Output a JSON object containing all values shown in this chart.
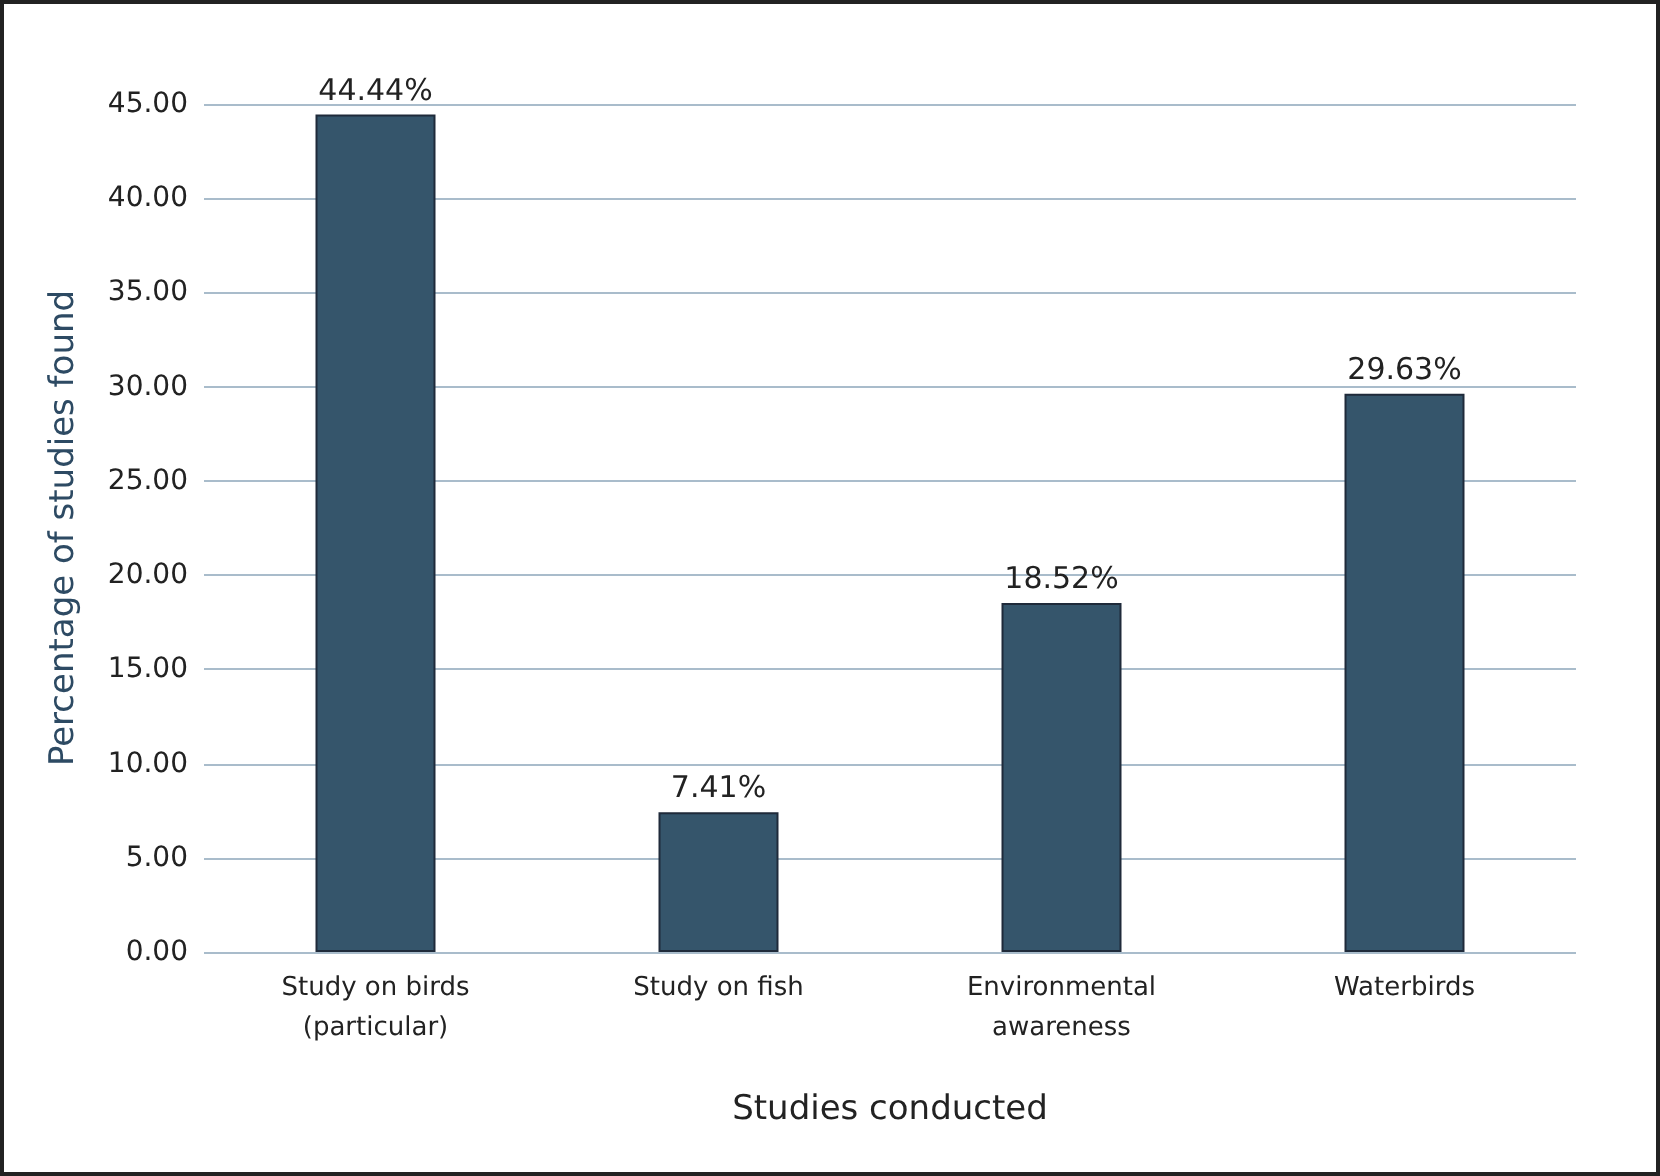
{
  "chart_data": {
    "type": "bar",
    "xlabel": "Studies conducted",
    "ylabel": "Percentage of studies found",
    "categories": [
      "Study on birds\n(particular)",
      "Study on fish",
      "Environmental\nawareness",
      "Waterbirds"
    ],
    "values": [
      44.44,
      7.41,
      18.52,
      29.63
    ],
    "value_labels": [
      "44.44%",
      "7.41%",
      "18.52%",
      "29.63%"
    ],
    "color": "#35556b",
    "ylim": [
      0,
      45
    ],
    "yticks": [
      {
        "value": 0,
        "label": "0.00"
      },
      {
        "value": 5,
        "label": "5.00"
      },
      {
        "value": 10,
        "label": "10.00"
      },
      {
        "value": 15,
        "label": "15.00"
      },
      {
        "value": 20,
        "label": "20.00"
      },
      {
        "value": 25,
        "label": "25.00"
      },
      {
        "value": 30,
        "label": "30.00"
      },
      {
        "value": 35,
        "label": "35.00"
      },
      {
        "value": 40,
        "label": "40.00"
      },
      {
        "value": 45,
        "label": "45.00"
      }
    ],
    "grid": "y"
  }
}
